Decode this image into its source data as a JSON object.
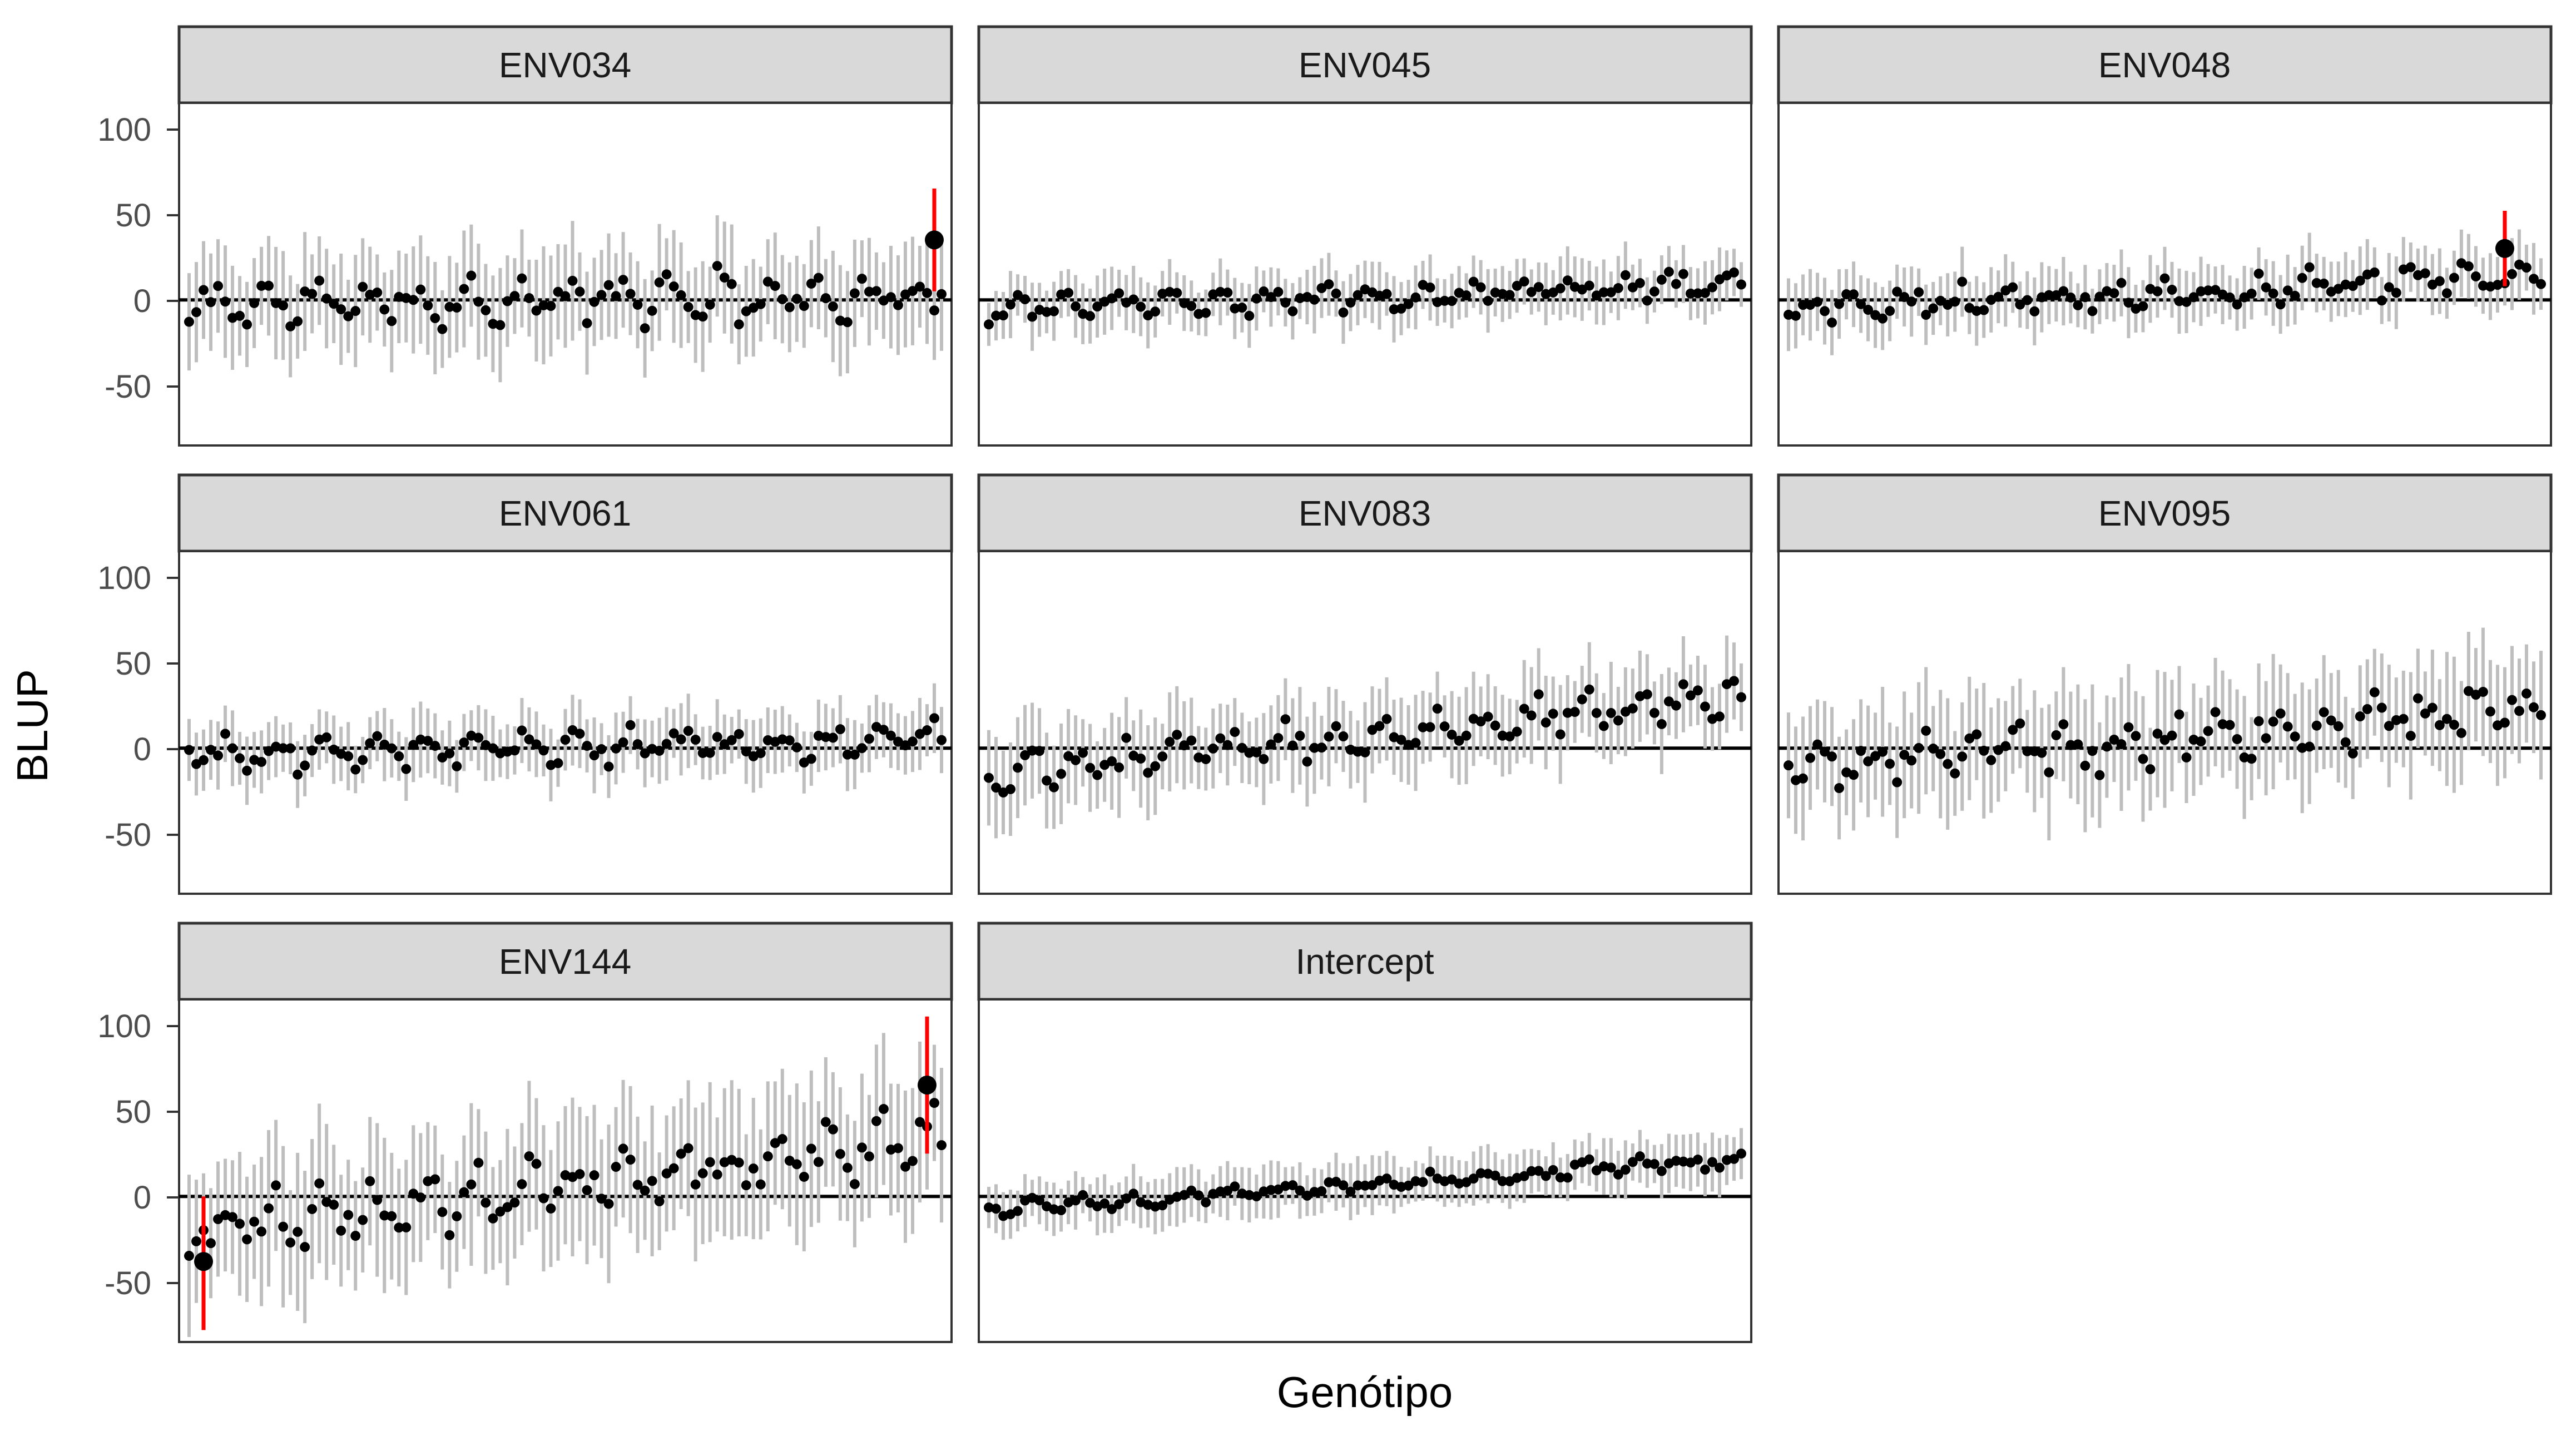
{
  "figure": {
    "xlabel": "Genótipo",
    "ylabel": "BLUP",
    "y_ticks": [
      {
        "label": "100",
        "value": 100
      },
      {
        "label": "50",
        "value": 50
      },
      {
        "label": "0",
        "value": 0
      },
      {
        "label": "-50",
        "value": -50
      }
    ]
  },
  "colors": {
    "interval": "#bebebe",
    "point": "#000000",
    "highlight": "#ff0000",
    "strip_bg": "#d9d9d9",
    "panel_border": "#333333",
    "zero_line": "#000000"
  },
  "chart_data": [
    {
      "type": "scatter",
      "panel": "ENV034",
      "ylim": [
        -85,
        115
      ],
      "n_genotypes": 105,
      "series": [
        {
          "trend_start": -3,
          "trend_end": 3,
          "wave_amp": 10,
          "noise": 9,
          "interval_half": 28,
          "seed": 11
        }
      ],
      "highlight": {
        "x_index": 103,
        "y": 35,
        "lo": 5,
        "hi": 65
      }
    },
    {
      "type": "scatter",
      "panel": "ENV045",
      "ylim": [
        -85,
        115
      ],
      "n_genotypes": 105,
      "series": [
        {
          "trend_start": -6,
          "trend_end": 10,
          "wave_amp": 5,
          "noise": 5,
          "interval_half": 16,
          "seed": 23
        }
      ]
    },
    {
      "type": "scatter",
      "panel": "ENV048",
      "ylim": [
        -85,
        115
      ],
      "n_genotypes": 105,
      "series": [
        {
          "trend_start": -5,
          "trend_end": 14,
          "wave_amp": 6,
          "noise": 6,
          "interval_half": 17,
          "seed": 37
        }
      ],
      "highlight": {
        "x_index": 99,
        "y": 30,
        "lo": 8,
        "hi": 52
      }
    },
    {
      "type": "scatter",
      "panel": "ENV061",
      "ylim": [
        -85,
        115
      ],
      "n_genotypes": 105,
      "series": [
        {
          "trend_start": -4,
          "trend_end": 5,
          "wave_amp": 8,
          "noise": 6,
          "interval_half": 18,
          "seed": 41
        }
      ]
    },
    {
      "type": "scatter",
      "panel": "ENV083",
      "ylim": [
        -85,
        115
      ],
      "n_genotypes": 105,
      "series": [
        {
          "trend_start": -14,
          "trend_end": 30,
          "wave_amp": 7,
          "noise": 7,
          "interval_half": 24,
          "seed": 53
        }
      ]
    },
    {
      "type": "scatter",
      "panel": "ENV095",
      "ylim": [
        -85,
        115
      ],
      "n_genotypes": 105,
      "series": [
        {
          "trend_start": -12,
          "trend_end": 22,
          "wave_amp": 9,
          "noise": 10,
          "interval_half": 32,
          "seed": 67
        }
      ]
    },
    {
      "type": "scatter",
      "panel": "ENV144",
      "ylim": [
        -85,
        115
      ],
      "n_genotypes": 105,
      "series": [
        {
          "trend_start": -20,
          "trend_end": 35,
          "wave_amp": 12,
          "noise": 10,
          "interval_half": 38,
          "seed": 79
        }
      ],
      "highlight_pairs": [
        {
          "x_index": 2,
          "y": -38,
          "lo": -78,
          "hi": 0
        },
        {
          "x_index": 102,
          "y": 65,
          "lo": 25,
          "hi": 105
        }
      ]
    },
    {
      "type": "scatter",
      "panel": "Intercept",
      "ylim": [
        -85,
        115
      ],
      "n_genotypes": 105,
      "series": [
        {
          "trend_start": -8,
          "trend_end": 22,
          "wave_amp": 3,
          "noise": 3,
          "interval_half": 14,
          "seed": 97
        }
      ]
    }
  ]
}
